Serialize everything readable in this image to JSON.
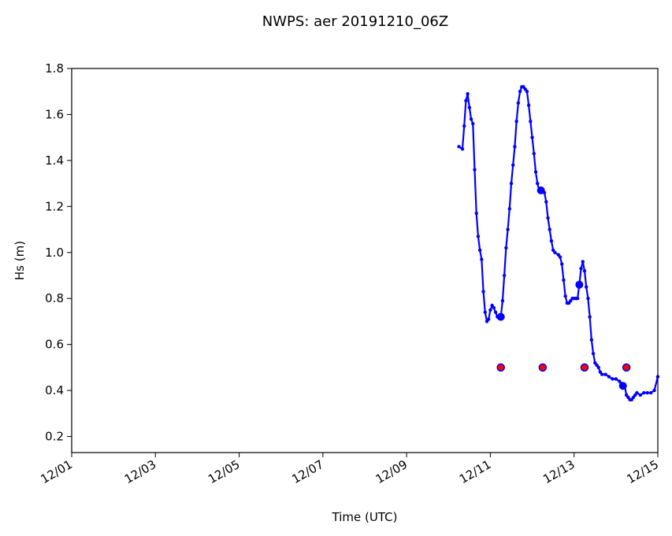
{
  "chart_data": {
    "type": "line",
    "title": "NWPS: aer 20191210_06Z",
    "xlabel": "Time (UTC)",
    "ylabel": "Hs (m)",
    "x_unit": "date (UTC, December 2019)",
    "xlim": [
      "12/01",
      "12/15"
    ],
    "ylim": [
      0.13,
      1.8
    ],
    "grid": false,
    "x_ticks": [
      "12/01",
      "12/03",
      "12/05",
      "12/07",
      "12/09",
      "12/11",
      "12/13",
      "12/15"
    ],
    "y_ticks": [
      "0.2",
      "0.4",
      "0.6",
      "0.8",
      "1.0",
      "1.2",
      "1.4",
      "1.6",
      "1.8"
    ],
    "series": [
      {
        "style": "line-with-markers",
        "color": "#0000ff",
        "points": [
          [
            "12/10 06:00",
            1.46
          ],
          [
            "12/10 08:00",
            1.45
          ],
          [
            "12/10 09:00",
            1.55
          ],
          [
            "12/10 10:00",
            1.66
          ],
          [
            "12/10 11:00",
            1.69
          ],
          [
            "12/10 12:00",
            1.63
          ],
          [
            "12/10 13:00",
            1.58
          ],
          [
            "12/10 14:00",
            1.56
          ],
          [
            "12/10 15:00",
            1.36
          ],
          [
            "12/10 16:00",
            1.17
          ],
          [
            "12/10 17:00",
            1.07
          ],
          [
            "12/10 18:00",
            1.01
          ],
          [
            "12/10 19:00",
            0.97
          ],
          [
            "12/10 20:00",
            0.83
          ],
          [
            "12/10 21:00",
            0.74
          ],
          [
            "12/10 22:00",
            0.7
          ],
          [
            "12/10 23:00",
            0.71
          ],
          [
            "12/11 00:00",
            0.75
          ],
          [
            "12/11 01:00",
            0.77
          ],
          [
            "12/11 02:00",
            0.76
          ],
          [
            "12/11 03:00",
            0.74
          ],
          [
            "12/11 04:00",
            0.72
          ],
          [
            "12/11 06:00",
            0.72
          ],
          [
            "12/11 07:00",
            0.79
          ],
          [
            "12/11 08:00",
            0.9
          ],
          [
            "12/11 09:00",
            1.02
          ],
          [
            "12/11 10:00",
            1.1
          ],
          [
            "12/11 11:00",
            1.19
          ],
          [
            "12/11 12:00",
            1.3
          ],
          [
            "12/11 13:00",
            1.38
          ],
          [
            "12/11 14:00",
            1.46
          ],
          [
            "12/11 15:00",
            1.57
          ],
          [
            "12/11 16:00",
            1.65
          ],
          [
            "12/11 17:00",
            1.7
          ],
          [
            "12/11 18:00",
            1.72
          ],
          [
            "12/11 19:00",
            1.72
          ],
          [
            "12/11 20:00",
            1.71
          ],
          [
            "12/11 21:00",
            1.7
          ],
          [
            "12/11 22:00",
            1.64
          ],
          [
            "12/11 23:00",
            1.57
          ],
          [
            "12/12 00:00",
            1.5
          ],
          [
            "12/12 01:00",
            1.43
          ],
          [
            "12/12 02:00",
            1.35
          ],
          [
            "12/12 03:00",
            1.3
          ],
          [
            "12/12 04:00",
            1.27
          ],
          [
            "12/12 05:00",
            1.27
          ],
          [
            "12/12 07:00",
            1.26
          ],
          [
            "12/12 08:00",
            1.22
          ],
          [
            "12/12 09:00",
            1.15
          ],
          [
            "12/12 10:00",
            1.1
          ],
          [
            "12/12 11:00",
            1.05
          ],
          [
            "12/12 12:00",
            1.01
          ],
          [
            "12/12 13:00",
            1.0
          ],
          [
            "12/12 15:00",
            0.99
          ],
          [
            "12/12 16:00",
            0.98
          ],
          [
            "12/12 17:00",
            0.95
          ],
          [
            "12/12 18:00",
            0.88
          ],
          [
            "12/12 19:00",
            0.81
          ],
          [
            "12/12 20:00",
            0.78
          ],
          [
            "12/12 21:00",
            0.78
          ],
          [
            "12/12 22:00",
            0.79
          ],
          [
            "12/12 23:00",
            0.8
          ],
          [
            "12/13 00:00",
            0.8
          ],
          [
            "12/13 01:00",
            0.8
          ],
          [
            "12/13 02:00",
            0.8
          ],
          [
            "12/13 03:00",
            0.86
          ],
          [
            "12/13 04:00",
            0.93
          ],
          [
            "12/13 05:00",
            0.96
          ],
          [
            "12/13 06:00",
            0.92
          ],
          [
            "12/13 07:00",
            0.85
          ],
          [
            "12/13 08:00",
            0.8
          ],
          [
            "12/13 09:00",
            0.72
          ],
          [
            "12/13 10:00",
            0.62
          ],
          [
            "12/13 11:00",
            0.56
          ],
          [
            "12/13 12:00",
            0.52
          ],
          [
            "12/13 13:00",
            0.51
          ],
          [
            "12/13 14:00",
            0.5
          ],
          [
            "12/13 15:00",
            0.48
          ],
          [
            "12/13 16:00",
            0.47
          ],
          [
            "12/13 18:00",
            0.47
          ],
          [
            "12/13 20:00",
            0.46
          ],
          [
            "12/13 22:00",
            0.45
          ],
          [
            "12/14 00:00",
            0.45
          ],
          [
            "12/14 02:00",
            0.44
          ],
          [
            "12/14 03:00",
            0.43
          ],
          [
            "12/14 04:00",
            0.42
          ],
          [
            "12/14 05:00",
            0.42
          ],
          [
            "12/14 06:00",
            0.38
          ],
          [
            "12/14 07:00",
            0.37
          ],
          [
            "12/14 08:00",
            0.36
          ],
          [
            "12/14 09:00",
            0.36
          ],
          [
            "12/14 10:00",
            0.37
          ],
          [
            "12/14 11:00",
            0.38
          ],
          [
            "12/14 12:00",
            0.39
          ],
          [
            "12/14 14:00",
            0.38
          ],
          [
            "12/14 16:00",
            0.39
          ],
          [
            "12/14 18:00",
            0.39
          ],
          [
            "12/14 20:00",
            0.39
          ],
          [
            "12/14 22:00",
            0.4
          ],
          [
            "12/15 00:00",
            0.46
          ]
        ]
      }
    ],
    "large_markers": {
      "color": "#0000ff",
      "points": [
        [
          "12/11 06:00",
          0.72
        ],
        [
          "12/12 05:00",
          1.27
        ],
        [
          "12/13 03:00",
          0.86
        ],
        [
          "12/14 04:00",
          0.42
        ]
      ]
    },
    "red_markers": {
      "color": "#ff0000",
      "edge_color": "#0000ff",
      "points": [
        [
          "12/11 06:00",
          0.5
        ],
        [
          "12/12 06:00",
          0.5
        ],
        [
          "12/13 06:00",
          0.5
        ],
        [
          "12/14 06:00",
          0.5
        ]
      ]
    }
  }
}
